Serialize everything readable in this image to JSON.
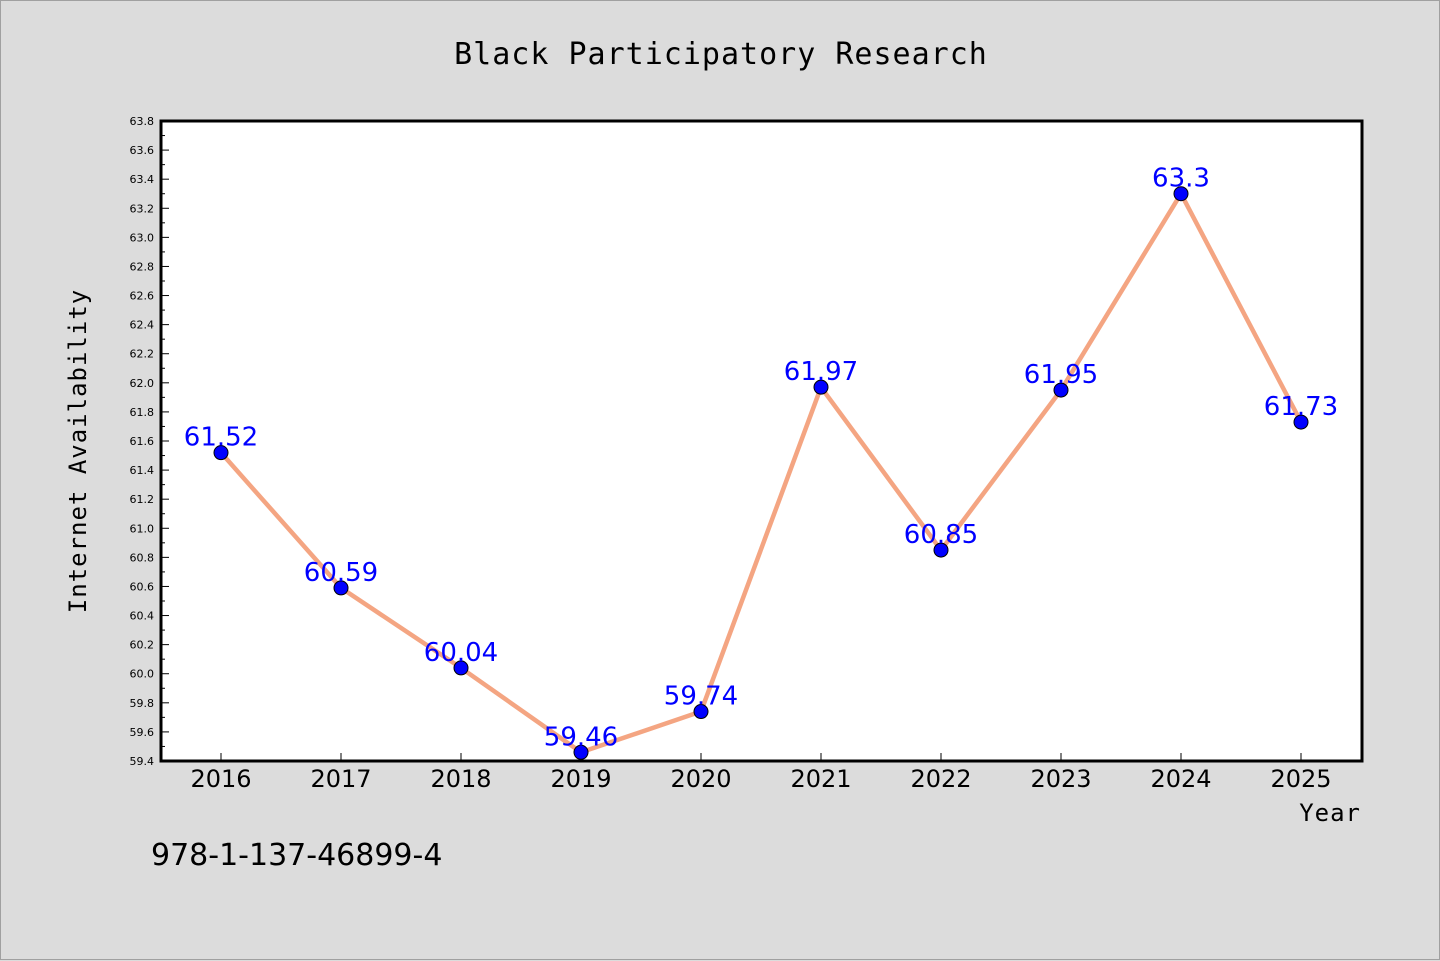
{
  "chart_data": {
    "type": "line",
    "title": "Black Participatory Research",
    "xlabel": "Year",
    "ylabel": "Internet Availability",
    "categories": [
      "2016",
      "2017",
      "2018",
      "2019",
      "2020",
      "2021",
      "2022",
      "2023",
      "2024",
      "2025"
    ],
    "series": [
      {
        "values": [
          61.52,
          60.59,
          60.04,
          59.46,
          59.74,
          61.97,
          60.85,
          61.95,
          63.3,
          61.73
        ],
        "labels": [
          "61.52",
          "60.59",
          "60.04",
          "59.46",
          "59.74",
          "61.97",
          "60.85",
          "61.95",
          "63.3",
          "61.73"
        ],
        "line_color": "#f4a582",
        "marker_color": "#0000ff"
      }
    ],
    "ylim": [
      59.4,
      63.8
    ],
    "yticks": [
      "59.4",
      "59.6",
      "59.8",
      "60.0",
      "60.2",
      "60.4",
      "60.6",
      "60.8",
      "61.0",
      "61.2",
      "61.4",
      "61.6",
      "61.8",
      "62.0",
      "62.2",
      "62.4",
      "62.6",
      "62.8",
      "63.0",
      "63.2",
      "63.4",
      "63.6",
      "63.8"
    ],
    "grid": false
  },
  "footer": {
    "isbn": "978-1-137-46899-4"
  },
  "colors": {
    "background": "#dcdcdc",
    "plot_background": "#ffffff",
    "line": "#f4a582",
    "marker": "#0000ff",
    "data_label": "#0000ff"
  }
}
